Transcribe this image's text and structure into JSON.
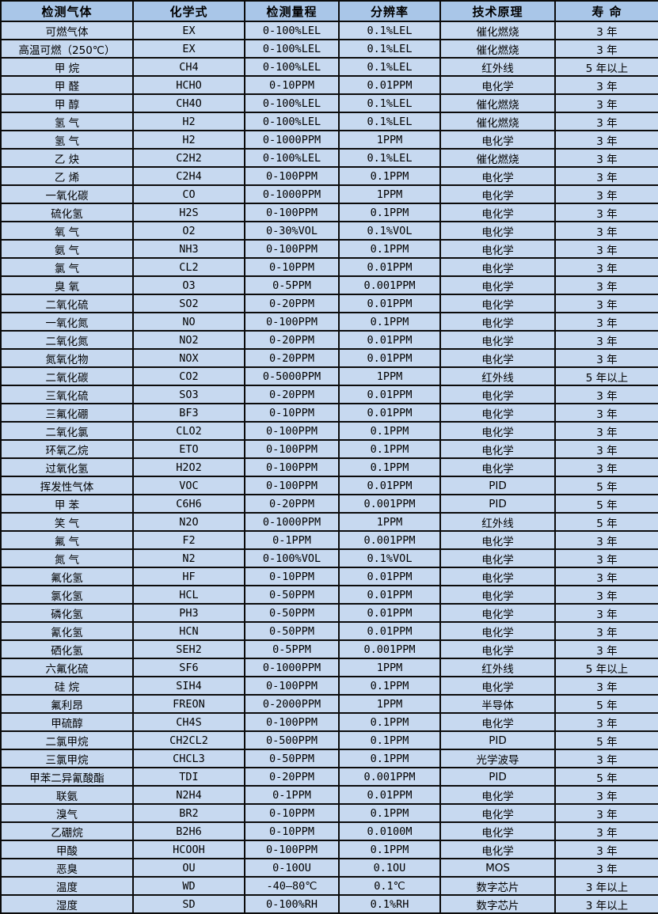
{
  "colors": {
    "header_bg": "#a9c6e8",
    "row_bg": "#c7d9f0",
    "border": "#0b0b0b",
    "text": "#000000"
  },
  "table": {
    "headers": [
      "检测气体",
      "化学式",
      "检测量程",
      "分辨率",
      "技术原理",
      "寿 命"
    ],
    "rows": [
      [
        "可燃气体",
        "EX",
        "0-100%LEL",
        "0.1%LEL",
        "催化燃烧",
        "3 年"
      ],
      [
        "高温可燃（250℃）",
        "EX",
        "0-100%LEL",
        "0.1%LEL",
        "催化燃烧",
        "3 年"
      ],
      [
        "甲 烷",
        "CH4",
        "0-100%LEL",
        "0.1%LEL",
        "红外线",
        "5 年以上"
      ],
      [
        "甲 醛",
        "HCHO",
        "0-10PPM",
        "0.01PPM",
        "电化学",
        "3 年"
      ],
      [
        "甲 醇",
        "CH4O",
        "0-100%LEL",
        "0.1%LEL",
        "催化燃烧",
        "3 年"
      ],
      [
        "氢 气",
        "H2",
        "0-100%LEL",
        "0.1%LEL",
        "催化燃烧",
        "3 年"
      ],
      [
        "氢 气",
        "H2",
        "0-1000PPM",
        "1PPM",
        "电化学",
        "3 年"
      ],
      [
        "乙 炔",
        "C2H2",
        "0-100%LEL",
        "0.1%LEL",
        "催化燃烧",
        "3 年"
      ],
      [
        "乙 烯",
        "C2H4",
        "0-100PPM",
        "0.1PPM",
        "电化学",
        "3 年"
      ],
      [
        "一氧化碳",
        "CO",
        "0-1000PPM",
        "1PPM",
        "电化学",
        "3 年"
      ],
      [
        "硫化氢",
        "H2S",
        "0-100PPM",
        "0.1PPM",
        "电化学",
        "3 年"
      ],
      [
        "氧 气",
        "O2",
        "0-30%VOL",
        "0.1%VOL",
        "电化学",
        "3 年"
      ],
      [
        "氨 气",
        "NH3",
        "0-100PPM",
        "0.1PPM",
        "电化学",
        "3 年"
      ],
      [
        "氯 气",
        "CL2",
        "0-10PPM",
        "0.01PPM",
        "电化学",
        "3 年"
      ],
      [
        "臭 氧",
        "O3",
        "0-5PPM",
        "0.001PPM",
        "电化学",
        "3 年"
      ],
      [
        "二氧化硫",
        "SO2",
        "0-20PPM",
        "0.01PPM",
        "电化学",
        "3 年"
      ],
      [
        "一氧化氮",
        "NO",
        "0-100PPM",
        "0.1PPM",
        "电化学",
        "3 年"
      ],
      [
        "二氧化氮",
        "NO2",
        "0-20PPM",
        "0.01PPM",
        "电化学",
        "3 年"
      ],
      [
        "氮氧化物",
        "NOX",
        "0-20PPM",
        "0.01PPM",
        "电化学",
        "3 年"
      ],
      [
        "二氧化碳",
        "CO2",
        "0-5000PPM",
        "1PPM",
        "红外线",
        "5 年以上"
      ],
      [
        "三氧化硫",
        "SO3",
        "0-20PPM",
        "0.01PPM",
        "电化学",
        "3 年"
      ],
      [
        "三氟化硼",
        "BF3",
        "0-10PPM",
        "0.01PPM",
        "电化学",
        "3 年"
      ],
      [
        "二氧化氯",
        "CLO2",
        "0-100PPM",
        "0.1PPM",
        "电化学",
        "3 年"
      ],
      [
        "环氧乙烷",
        "ETO",
        "0-100PPM",
        "0.1PPM",
        "电化学",
        "3 年"
      ],
      [
        "过氧化氢",
        "H2O2",
        "0-100PPM",
        "0.1PPM",
        "电化学",
        "3 年"
      ],
      [
        "挥发性气体",
        "VOC",
        "0-100PPM",
        "0.01PPM",
        "PID",
        "5 年"
      ],
      [
        "甲 苯",
        "C6H6",
        "0-20PPM",
        "0.001PPM",
        "PID",
        "5 年"
      ],
      [
        "笑 气",
        "N2O",
        "0-1000PPM",
        "1PPM",
        "红外线",
        "5 年"
      ],
      [
        "氟 气",
        "F2",
        "0-1PPM",
        "0.001PPM",
        "电化学",
        "3 年"
      ],
      [
        "氮 气",
        "N2",
        "0-100%VOL",
        "0.1%VOL",
        "电化学",
        "3 年"
      ],
      [
        "氟化氢",
        "HF",
        "0-10PPM",
        "0.01PPM",
        "电化学",
        "3 年"
      ],
      [
        "氯化氢",
        "HCL",
        "0-50PPM",
        "0.01PPM",
        "电化学",
        "3 年"
      ],
      [
        "磷化氢",
        "PH3",
        "0-50PPM",
        "0.01PPM",
        "电化学",
        "3 年"
      ],
      [
        "氰化氢",
        "HCN",
        "0-50PPM",
        "0.01PPM",
        "电化学",
        "3 年"
      ],
      [
        "硒化氢",
        "SEH2",
        "0-5PPM",
        "0.001PPM",
        "电化学",
        "3 年"
      ],
      [
        "六氟化硫",
        "SF6",
        "0-1000PPM",
        "1PPM",
        "红外线",
        "5 年以上"
      ],
      [
        "硅 烷",
        "SIH4",
        "0-100PPM",
        "0.1PPM",
        "电化学",
        "3 年"
      ],
      [
        "氟利昂",
        "FREON",
        "0-2000PPM",
        "1PPM",
        "半导体",
        "5 年"
      ],
      [
        "甲硫醇",
        "CH4S",
        "0-100PPM",
        "0.1PPM",
        "电化学",
        "3 年"
      ],
      [
        "二氯甲烷",
        "CH2CL2",
        "0-500PPM",
        "0.1PPM",
        "PID",
        "5 年"
      ],
      [
        "三氯甲烷",
        "CHCL3",
        "0-50PPM",
        "0.1PPM",
        "光学波导",
        "3 年"
      ],
      [
        "甲苯二异氰酸酯",
        "TDI",
        "0-20PPM",
        "0.001PPM",
        "PID",
        "5 年"
      ],
      [
        "联氨",
        "N2H4",
        "0-1PPM",
        "0.01PPM",
        "电化学",
        "3 年"
      ],
      [
        "溴气",
        "BR2",
        "0-10PPM",
        "0.1PPM",
        "电化学",
        "3 年"
      ],
      [
        "乙硼烷",
        "B2H6",
        "0-10PPM",
        "0.0100M",
        "电化学",
        "3 年"
      ],
      [
        "甲酸",
        "HCOOH",
        "0-100PPM",
        "0.1PPM",
        "电化学",
        "3 年"
      ],
      [
        "恶臭",
        "OU",
        "0-10OU",
        "0.1OU",
        "MOS",
        "3 年"
      ],
      [
        "温度",
        "WD",
        "-40—80℃",
        "0.1℃",
        "数字芯片",
        "3 年以上"
      ],
      [
        "湿度",
        "SD",
        "0-100%RH",
        "0.1%RH",
        "数字芯片",
        "3 年以上"
      ]
    ]
  }
}
